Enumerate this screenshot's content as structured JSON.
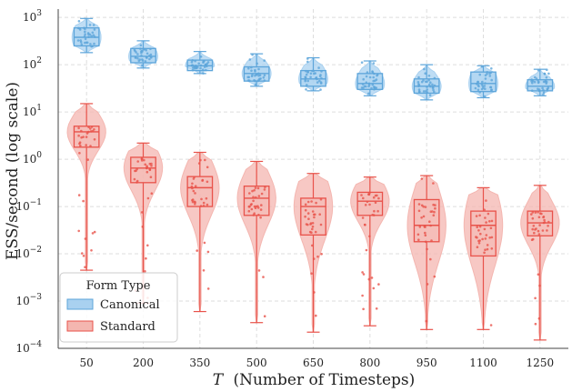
{
  "chart_data": {
    "type": "box-violin",
    "xlabel_var": "T",
    "xlabel_text": "(Number of Timesteps)",
    "ylabel": "ESS/second (log scale)",
    "yscale": "log",
    "ylim": [
      0.0001,
      1500
    ],
    "yticks": [
      {
        "value": 1000,
        "label": "10",
        "exp": "3"
      },
      {
        "value": 100,
        "label": "10",
        "exp": "2"
      },
      {
        "value": 10,
        "label": "10",
        "exp": "1"
      },
      {
        "value": 1,
        "label": "10",
        "exp": "0"
      },
      {
        "value": 0.1,
        "label": "10",
        "exp": "−1"
      },
      {
        "value": 0.01,
        "label": "10",
        "exp": "−2"
      },
      {
        "value": 0.001,
        "label": "10",
        "exp": "−3"
      },
      {
        "value": 0.0001,
        "label": "10",
        "exp": "−4"
      }
    ],
    "grid": true,
    "categories": [
      "50",
      "200",
      "350",
      "500",
      "650",
      "800",
      "950",
      "1100",
      "1250"
    ],
    "legend": {
      "title": "Form Type",
      "position": "lower-left",
      "entries": [
        "Canonical",
        "Standard"
      ]
    },
    "series": [
      {
        "name": "Canonical",
        "color": "#5da5da",
        "fill": "#a9d1f0",
        "boxes": [
          {
            "min": 180,
            "q1": 250,
            "median": 380,
            "q3": 600,
            "max": 950
          },
          {
            "min": 85,
            "q1": 110,
            "median": 150,
            "q3": 220,
            "max": 320
          },
          {
            "min": 65,
            "q1": 75,
            "median": 95,
            "q3": 125,
            "max": 190
          },
          {
            "min": 35,
            "q1": 45,
            "median": 65,
            "q3": 90,
            "max": 170
          },
          {
            "min": 28,
            "q1": 35,
            "median": 50,
            "q3": 75,
            "max": 140
          },
          {
            "min": 22,
            "q1": 30,
            "median": 40,
            "q3": 65,
            "max": 120
          },
          {
            "min": 18,
            "q1": 25,
            "median": 35,
            "q3": 50,
            "max": 100
          },
          {
            "min": 20,
            "q1": 27,
            "median": 40,
            "q3": 70,
            "max": 95
          },
          {
            "min": 22,
            "q1": 28,
            "median": 35,
            "q3": 48,
            "max": 80
          }
        ]
      },
      {
        "name": "Standard",
        "color": "#e8524a",
        "fill": "#f4b6b0",
        "boxes": [
          {
            "min": 0.0045,
            "q1": 1.8,
            "median": 3.8,
            "q3": 5,
            "max": 15
          },
          {
            "min": 0.0009,
            "q1": 0.32,
            "median": 0.65,
            "q3": 1.1,
            "max": 2.2
          },
          {
            "min": 0.0006,
            "q1": 0.1,
            "median": 0.25,
            "q3": 0.43,
            "max": 1.4
          },
          {
            "min": 0.00035,
            "q1": 0.065,
            "median": 0.15,
            "q3": 0.27,
            "max": 0.9
          },
          {
            "min": 0.00022,
            "q1": 0.025,
            "median": 0.1,
            "q3": 0.15,
            "max": 0.5
          },
          {
            "min": 0.0003,
            "q1": 0.065,
            "median": 0.13,
            "q3": 0.2,
            "max": 0.42
          },
          {
            "min": 0.00025,
            "q1": 0.018,
            "median": 0.04,
            "q3": 0.14,
            "max": 0.45
          },
          {
            "min": 0.00025,
            "q1": 0.009,
            "median": 0.04,
            "q3": 0.08,
            "max": 0.25
          },
          {
            "min": 0.00015,
            "q1": 0.024,
            "median": 0.045,
            "q3": 0.08,
            "max": 0.28
          }
        ]
      }
    ]
  }
}
